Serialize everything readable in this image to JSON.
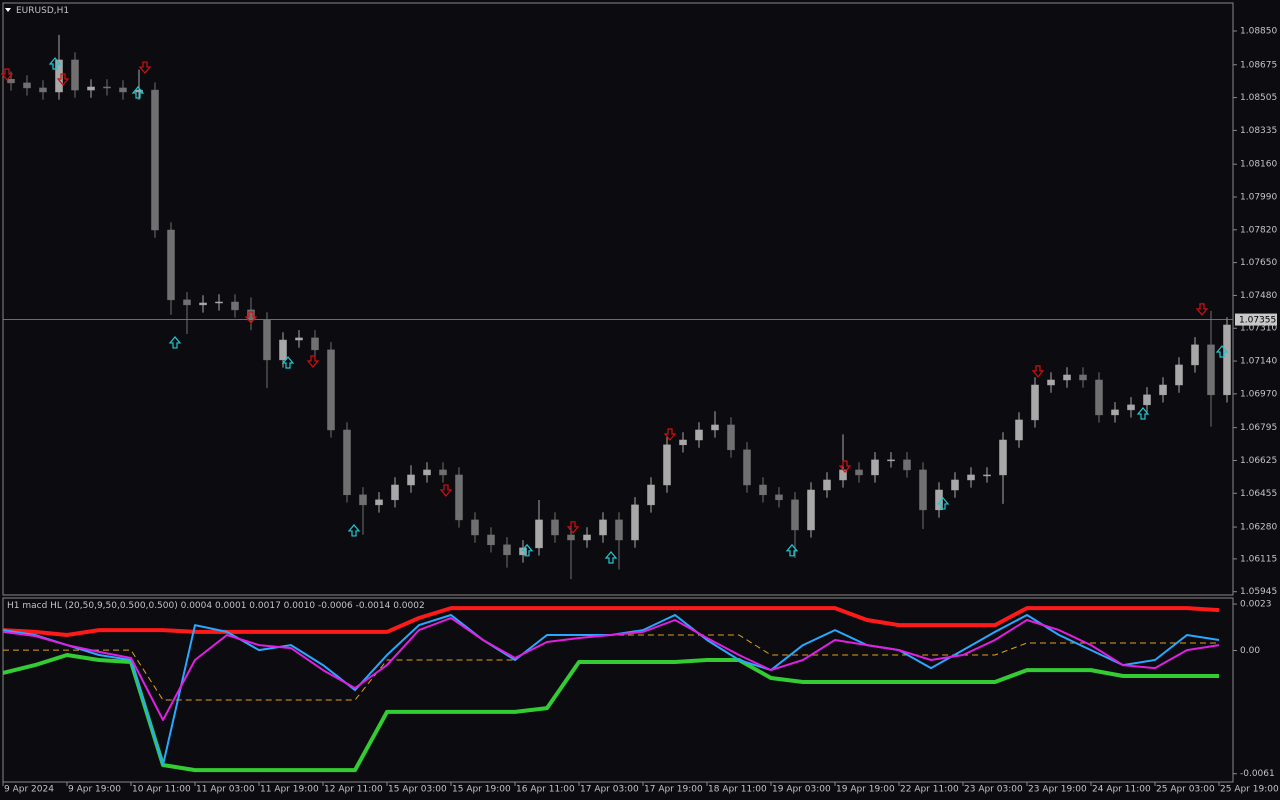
{
  "chart_data": [
    {
      "type": "candlestick",
      "title": "EURUSD,H1",
      "x": [
        2,
        6,
        10,
        14,
        18,
        22,
        26,
        30,
        34,
        38,
        42,
        46,
        50,
        54,
        58,
        62,
        66,
        70,
        74,
        78,
        82,
        86,
        90,
        94,
        98,
        102,
        106,
        110,
        114,
        118,
        122,
        126,
        130,
        134,
        138,
        142,
        146,
        150,
        154,
        158,
        162,
        166,
        170,
        174,
        178,
        182,
        186,
        190,
        194,
        198,
        202,
        206,
        210,
        214,
        218,
        222,
        226,
        230,
        234,
        238,
        242,
        246,
        250,
        254,
        258,
        262,
        266,
        270,
        274,
        278,
        282,
        286,
        290,
        294,
        298,
        302,
        306
      ],
      "open": [
        1.086,
        1.08581,
        1.08555,
        1.08534,
        1.087,
        1.08544,
        1.0856,
        1.08555,
        1.08534,
        1.08544,
        1.07819,
        1.07457,
        1.07431,
        1.07441,
        1.07446,
        1.07405,
        1.07353,
        1.07146,
        1.07249,
        1.0726,
        1.07198,
        1.06783,
        1.06447,
        1.06395,
        1.06421,
        1.06498,
        1.0655,
        1.06576,
        1.0655,
        1.06317,
        1.06239,
        1.06188,
        1.06136,
        1.06172,
        1.06317,
        1.06239,
        1.06213,
        1.06239,
        1.06317,
        1.06213,
        1.06395,
        1.06498,
        1.06706,
        1.06731,
        1.06783,
        1.06809,
        1.0668,
        1.06498,
        1.06447,
        1.06421,
        1.06265,
        1.06472,
        1.06524,
        1.06576,
        1.0655,
        1.06628,
        1.06628,
        1.06576,
        1.06369,
        1.06472,
        1.06524,
        1.0655,
        1.0655,
        1.06731,
        1.06835,
        1.07016,
        1.07042,
        1.07068,
        1.07042,
        1.06861,
        1.06887,
        1.06913,
        1.06965,
        1.07016,
        1.0712,
        1.07224,
        1.06965
      ],
      "high": [
        1.0864,
        1.08621,
        1.08595,
        1.0883,
        1.0874,
        1.086,
        1.086,
        1.08595,
        1.0865,
        1.08584,
        1.07859,
        1.07497,
        1.07481,
        1.07486,
        1.07486,
        1.0747,
        1.07393,
        1.07289,
        1.073,
        1.073,
        1.07238,
        1.06823,
        1.06487,
        1.06461,
        1.06538,
        1.066,
        1.06616,
        1.06616,
        1.0659,
        1.06357,
        1.06279,
        1.06228,
        1.06212,
        1.0642,
        1.06357,
        1.06279,
        1.06279,
        1.06357,
        1.06357,
        1.06435,
        1.06538,
        1.06746,
        1.06771,
        1.06823,
        1.0688,
        1.06849,
        1.0672,
        1.06538,
        1.06487,
        1.06461,
        1.06512,
        1.06564,
        1.0676,
        1.06616,
        1.06668,
        1.06668,
        1.06668,
        1.06616,
        1.06512,
        1.06564,
        1.0659,
        1.0659,
        1.06771,
        1.06875,
        1.07056,
        1.07082,
        1.07108,
        1.07108,
        1.07082,
        1.06927,
        1.06953,
        1.07005,
        1.07056,
        1.0716,
        1.07264,
        1.074,
        1.07367
      ],
      "low": [
        1.08541,
        1.08515,
        1.08494,
        1.08494,
        1.08504,
        1.08504,
        1.08515,
        1.08494,
        1.08494,
        1.07779,
        1.0738,
        1.0728,
        1.07391,
        1.07401,
        1.07365,
        1.073,
        1.07,
        1.07106,
        1.07209,
        1.07158,
        1.06743,
        1.06407,
        1.0624,
        1.06355,
        1.06381,
        1.06458,
        1.0651,
        1.0651,
        1.06277,
        1.06199,
        1.06148,
        1.0607,
        1.06096,
        1.06132,
        1.06199,
        1.0601,
        1.06173,
        1.06199,
        1.0606,
        1.06173,
        1.06355,
        1.06458,
        1.06666,
        1.06691,
        1.06743,
        1.0664,
        1.06458,
        1.06407,
        1.06381,
        1.0612,
        1.06225,
        1.06432,
        1.06484,
        1.0651,
        1.0651,
        1.06588,
        1.06536,
        1.0627,
        1.06329,
        1.06432,
        1.06484,
        1.0651,
        1.064,
        1.06691,
        1.06795,
        1.06976,
        1.07002,
        1.07002,
        1.06821,
        1.06821,
        1.06847,
        1.06873,
        1.06925,
        1.06976,
        1.0708,
        1.068,
        1.06925
      ],
      "close": [
        1.08581,
        1.08555,
        1.08534,
        1.087,
        1.08544,
        1.0856,
        1.08555,
        1.08534,
        1.08544,
        1.07819,
        1.07457,
        1.07431,
        1.07441,
        1.07446,
        1.07405,
        1.07353,
        1.07146,
        1.07249,
        1.0726,
        1.07198,
        1.06783,
        1.06447,
        1.06395,
        1.06421,
        1.06498,
        1.0655,
        1.06576,
        1.0655,
        1.06317,
        1.06239,
        1.06188,
        1.06136,
        1.06172,
        1.06317,
        1.06239,
        1.06213,
        1.06239,
        1.06317,
        1.06213,
        1.06395,
        1.06498,
        1.06706,
        1.06731,
        1.06783,
        1.06809,
        1.0668,
        1.06498,
        1.06447,
        1.06421,
        1.06265,
        1.06472,
        1.06524,
        1.06576,
        1.0655,
        1.06628,
        1.06628,
        1.06576,
        1.06369,
        1.06472,
        1.06524,
        1.0655,
        1.0655,
        1.06731,
        1.06835,
        1.07016,
        1.07042,
        1.07068,
        1.07042,
        1.06861,
        1.06887,
        1.06913,
        1.06965,
        1.07016,
        1.0712,
        1.07224,
        1.06965,
        1.07327
      ],
      "up_color": "#a8a8a8",
      "down_color": "#707070",
      "signals": {
        "down": {
          "color": "#d01010",
          "x": [
            1,
            15,
            35.5,
            62,
            77.5,
            110.75,
            142.5,
            166.75,
            210.5,
            258.75,
            299.75
          ],
          "y": [
            1.08622,
            1.08596,
            1.08658,
            1.07363,
            1.07135,
            1.06467,
            1.06276,
            1.06757,
            1.06591,
            1.07084,
            1.07405
          ]
        },
        "up": {
          "color": "#20c8d0",
          "x": [
            13,
            33.75,
            43,
            71.25,
            87.75,
            131,
            152,
            197.25,
            235,
            285,
            304.75
          ],
          "y": [
            1.08684,
            1.08534,
            1.07239,
            1.07135,
            1.06265,
            1.06162,
            1.06125,
            1.06162,
            1.06405,
            1.06871,
            1.07192
          ]
        }
      },
      "current_price": 1.07355,
      "xlim": [
        0,
        307.5
      ],
      "ylim": [
        1.05928,
        1.08995
      ],
      "yticks": [
        {
          "value": 1.0885,
          "label": "1.08850"
        },
        1.08675,
        1.08505,
        1.08335,
        {
          "value": 1.0816,
          "label": "1.08160"
        },
        {
          "value": 1.0799,
          "label": "1.07990"
        },
        {
          "value": 1.0782,
          "label": "1.07820"
        },
        {
          "value": 1.0765,
          "label": "1.07650"
        },
        {
          "value": 1.0748,
          "label": "1.07480"
        },
        {
          "value": 1.0731,
          "label": "1.07310"
        },
        {
          "value": 1.0714,
          "label": "1.07140"
        },
        {
          "value": 1.0697,
          "label": "1.06970"
        },
        1.06795,
        1.06625,
        1.06455,
        {
          "value": 1.0628,
          "label": "1.06280"
        },
        1.06115,
        1.05945
      ]
    },
    {
      "type": "line",
      "title": "H1 macd HL (20,50,9,50,0.500,0.500) 0.0004 0.0001 0.0017 0.0010 -0.0006 -0.0014 0.0002",
      "x": [
        0,
        8,
        16,
        24,
        32,
        40,
        48,
        56,
        64,
        72,
        80,
        88,
        96,
        104,
        112,
        120,
        128,
        136,
        144,
        152,
        160,
        168,
        176,
        184,
        192,
        200,
        208,
        216,
        224,
        232,
        240,
        248,
        256,
        264,
        272,
        280,
        288,
        296,
        304
      ],
      "series": [
        {
          "color": "#ff1a1a",
          "style": "thick",
          "values": [
            0.00101,
            0.00092,
            0.00077,
            0.00101,
            0.00101,
            0.00101,
            0.00092,
            0.00092,
            0.00092,
            0.00092,
            0.00092,
            0.00092,
            0.00092,
            0.00161,
            0.0021,
            0.0021,
            0.0021,
            0.0021,
            0.0021,
            0.0021,
            0.0021,
            0.0021,
            0.0021,
            0.0021,
            0.0021,
            0.0021,
            0.0021,
            0.00151,
            0.00126,
            0.00126,
            0.00126,
            0.00126,
            0.0021,
            0.0021,
            0.0021,
            0.0021,
            0.0021,
            0.0021,
            0.002
          ]
        },
        {
          "color": "#33cc33",
          "style": "thick",
          "values": [
            -0.00111,
            -0.00072,
            -0.00022,
            -0.00047,
            -0.00057,
            -0.00567,
            -0.00592,
            -0.00592,
            -0.00592,
            -0.00592,
            -0.00592,
            -0.00592,
            -0.00304,
            -0.00304,
            -0.00304,
            -0.00304,
            -0.00304,
            -0.00285,
            -0.00057,
            -0.00057,
            -0.00057,
            -0.00057,
            -0.00047,
            -0.00047,
            -0.00136,
            -0.00156,
            -0.00156,
            -0.00156,
            -0.00156,
            -0.00156,
            -0.00156,
            -0.00156,
            -0.00097,
            -0.00097,
            -0.00097,
            -0.00126,
            -0.00126,
            -0.00126,
            -0.00126
          ]
        },
        {
          "color": "#e0a020",
          "style": "dashed",
          "values": [
            2e-05,
            2e-05,
            2e-05,
            2e-05,
            2e-05,
            -0.00245,
            -0.00245,
            -0.00245,
            -0.00245,
            -0.00245,
            -0.00245,
            -0.00245,
            -0.00047,
            -0.00047,
            -0.00047,
            -0.00047,
            -0.00047,
            0.00077,
            0.00077,
            0.00077,
            0.00077,
            0.00077,
            0.00077,
            0.00077,
            -0.00022,
            -0.00022,
            -0.00022,
            -0.00022,
            -0.00022,
            -0.00022,
            -0.00022,
            -0.00022,
            0.00037,
            0.00037,
            0.00037,
            0.00037,
            0.00037,
            0.00037,
            0.00037
          ]
        },
        {
          "color": "#2aa8ff",
          "style": "normal",
          "values": [
            0.00101,
            0.00077,
            0.00027,
            -0.00022,
            -0.00047,
            -0.00567,
            0.00126,
            0.00092,
            2e-05,
            0.00027,
            -0.00072,
            -0.00196,
            -0.00022,
            0.00126,
            0.00176,
            0.00052,
            -0.00047,
            0.00077,
            0.00077,
            0.00077,
            0.00101,
            0.00176,
            0.00052,
            -0.00047,
            -0.00097,
            0.00027,
            0.00101,
            0.00027,
            2e-05,
            -0.00087,
            2e-05,
            0.00092,
            0.00176,
            0.00077,
            2e-05,
            -0.00072,
            -0.00047,
            0.00077,
            0.00052
          ]
        },
        {
          "color": "#e020e0",
          "style": "normal",
          "values": [
            0.00092,
            0.00072,
            0.00027,
            -7e-05,
            -0.00037,
            -0.00344,
            -0.00047,
            0.00077,
            0.00027,
            0.00012,
            -0.00097,
            -0.00186,
            -0.00072,
            0.00101,
            0.00161,
            0.00052,
            -0.00037,
            0.00042,
            0.00062,
            0.00077,
            0.00092,
            0.00151,
            0.00062,
            -0.00022,
            -0.00097,
            -0.00047,
            0.00052,
            0.00027,
            2e-05,
            -0.00047,
            -0.00022,
            0.00052,
            0.00151,
            0.00101,
            0.00027,
            -0.00072,
            -0.00087,
            2e-05,
            0.00027
          ]
        }
      ],
      "xlim": [
        0,
        307.5
      ],
      "xticks": [
        {
          "value": 0,
          "label": "9 Apr 2024"
        },
        {
          "value": 16,
          "label": "9 Apr 19:00"
        },
        {
          "value": 32,
          "label": "10 Apr 11:00"
        },
        {
          "value": 48,
          "label": "11 Apr 03:00"
        },
        {
          "value": 64,
          "label": "11 Apr 19:00"
        },
        {
          "value": 80,
          "label": "12 Apr 11:00"
        },
        {
          "value": 96,
          "label": "15 Apr 03:00"
        },
        {
          "value": 112,
          "label": "15 Apr 19:00"
        },
        {
          "value": 128,
          "label": "16 Apr 11:00"
        },
        {
          "value": 144,
          "label": "17 Apr 03:00"
        },
        {
          "value": 160,
          "label": "17 Apr 19:00"
        },
        {
          "value": 176,
          "label": "18 Apr 11:00"
        },
        {
          "value": 192,
          "label": "19 Apr 03:00"
        },
        {
          "value": 208,
          "label": "19 Apr 19:00"
        },
        {
          "value": 224,
          "label": "22 Apr 11:00"
        },
        {
          "value": 240,
          "label": "23 Apr 03:00"
        },
        {
          "value": 256,
          "label": "23 Apr 19:00"
        },
        {
          "value": 272,
          "label": "24 Apr 11:00"
        },
        {
          "value": 288,
          "label": "25 Apr 03:00"
        },
        {
          "value": 304,
          "label": "25 Apr 19:00"
        }
      ],
      "ylim": [
        -0.00651,
        0.0026
      ],
      "yticks": [
        0.0023,
        {
          "value": 0,
          "label": "0.00"
        },
        -0.0061
      ]
    }
  ]
}
